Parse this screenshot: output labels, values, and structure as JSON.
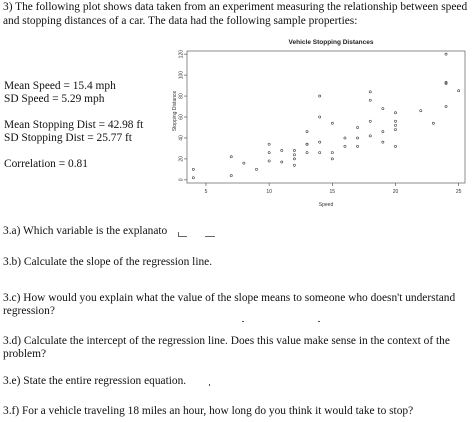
{
  "problem": {
    "intro": "3) The following plot shows data taken from an experiment measuring the relationship between speed and stopping distances of a car. The data had the following sample properties:"
  },
  "stats": {
    "mean_speed": "Mean Speed = 15.4 mph",
    "sd_speed": "SD Speed = 5.29 mph",
    "mean_dist": "Mean Stopping Dist = 42.98 ft",
    "sd_dist": "SD Stopping Dist = 25.77 ft",
    "correlation": "Correlation = 0.81"
  },
  "questions": {
    "a": "3.a) Which variable is the explanato",
    "b": "3.b) Calculate the slope of the regression line.",
    "c": "3.c) How would you explain what the value of the slope means to someone who doesn't understand regression?",
    "d": "3.d) Calculate the intercept of the regression line. Does this value make sense in the context of the problem?",
    "e": "3.e) State the entire regression equation.",
    "f": "3.f) For a vehicle traveling 18 miles an hour, how long do you think it would take to stop?"
  },
  "chart_data": {
    "type": "scatter",
    "title": "Vehicle Stopping Distances",
    "xlabel": "Speed",
    "ylabel": "Stopping Distance",
    "xlim": [
      3.5,
      25.5
    ],
    "ylim": [
      -3,
      123
    ],
    "xticks": [
      5,
      10,
      15,
      20,
      25
    ],
    "yticks": [
      0,
      20,
      40,
      60,
      80,
      100,
      120
    ],
    "colors": {
      "points": "#333333",
      "axes": "#444444"
    },
    "points": [
      [
        4,
        2
      ],
      [
        4,
        10
      ],
      [
        7,
        4
      ],
      [
        7,
        22
      ],
      [
        8,
        16
      ],
      [
        9,
        10
      ],
      [
        10,
        18
      ],
      [
        10,
        26
      ],
      [
        10,
        34
      ],
      [
        11,
        17
      ],
      [
        11,
        28
      ],
      [
        12,
        14
      ],
      [
        12,
        20
      ],
      [
        12,
        24
      ],
      [
        12,
        28
      ],
      [
        13,
        26
      ],
      [
        13,
        34
      ],
      [
        13,
        34
      ],
      [
        13,
        46
      ],
      [
        14,
        26
      ],
      [
        14,
        36
      ],
      [
        14,
        60
      ],
      [
        14,
        80
      ],
      [
        15,
        20
      ],
      [
        15,
        26
      ],
      [
        15,
        54
      ],
      [
        16,
        32
      ],
      [
        16,
        40
      ],
      [
        17,
        32
      ],
      [
        17,
        40
      ],
      [
        17,
        50
      ],
      [
        18,
        42
      ],
      [
        18,
        56
      ],
      [
        18,
        76
      ],
      [
        18,
        84
      ],
      [
        19,
        36
      ],
      [
        19,
        46
      ],
      [
        19,
        68
      ],
      [
        20,
        32
      ],
      [
        20,
        48
      ],
      [
        20,
        52
      ],
      [
        20,
        56
      ],
      [
        20,
        64
      ],
      [
        22,
        66
      ],
      [
        23,
        54
      ],
      [
        24,
        70
      ],
      [
        24,
        92
      ],
      [
        24,
        93
      ],
      [
        24,
        120
      ],
      [
        25,
        85
      ]
    ]
  }
}
